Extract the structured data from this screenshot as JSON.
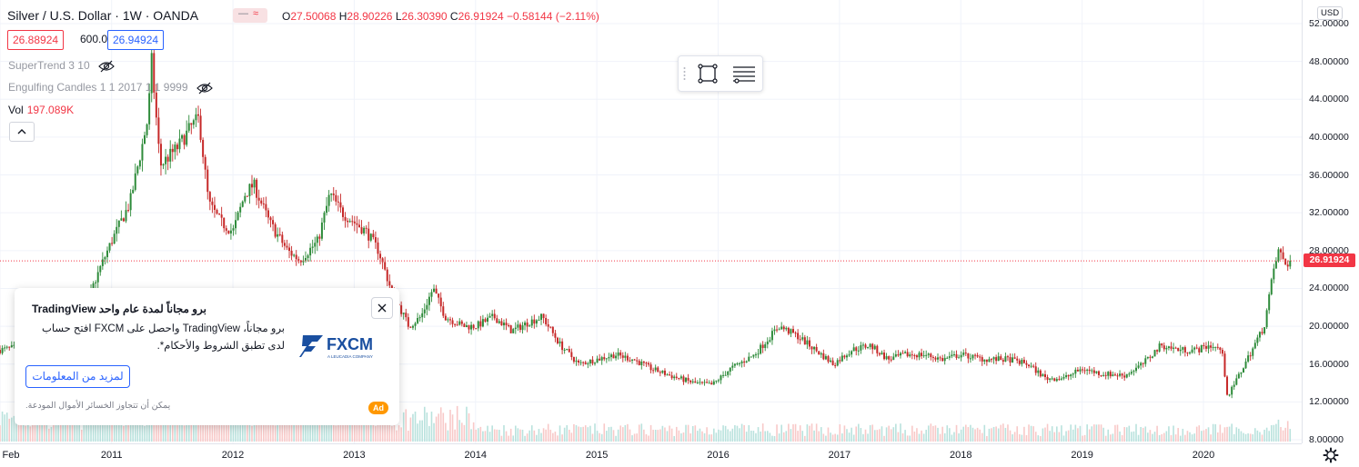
{
  "legend": {
    "symbol": "Silver / U.S. Dollar",
    "interval": "1W",
    "exchange": "OANDA",
    "toggle_icon_left": "—",
    "toggle_icon_right": "≈",
    "open_label": "O",
    "open": "27.50068",
    "high_label": "H",
    "high": "28.90226",
    "low_label": "L",
    "low": "26.30390",
    "close_label": "C",
    "close": "26.91924",
    "change": "−0.58144",
    "change_pct": "(−2.11%)",
    "bid": "26.88924",
    "spread": "600.0",
    "ask": "26.94924",
    "indicator1": "SuperTrend 3 10",
    "indicator2": "Engulfing Candles 1 1 2017 1 1 9999",
    "volume_label": "Vol",
    "volume_value": "197.089K",
    "hidden_icon": "eye-crossed-icon",
    "collapse_icon": "chevron-up-icon"
  },
  "price_axis": {
    "currency": "USD",
    "ticks": [
      "52.00000",
      "48.00000",
      "44.00000",
      "40.00000",
      "36.00000",
      "32.00000",
      "28.00000",
      "24.00000",
      "20.00000",
      "16.00000",
      "12.00000",
      "8.00000"
    ],
    "last_price": "26.91924"
  },
  "time_axis": {
    "labels": [
      "Feb",
      "2011",
      "2012",
      "2013",
      "2014",
      "2015",
      "2016",
      "2017",
      "2018",
      "2019",
      "2020"
    ]
  },
  "toolbar": {
    "rect_icon": "rectangle-tool-icon",
    "lines_icon": "settings-lines-icon"
  },
  "ad": {
    "title": "برو مجاناً لمدة عام واحد TradingView",
    "body": "برو مجاناً، TradingView واحصل على FXCM افتح حساب لدى تطبق الشروط والأحكام*.",
    "button": "لمزيد من المعلومات",
    "disclaimer": "يمكن أن تتجاوز الخسائر الأموال المودعة.",
    "badge": "Ad",
    "logo_text": "FXCM",
    "logo_sub": "A LEUCADIA COMPANY",
    "brand_color": "#1a4fa0"
  },
  "colors": {
    "up": "#26a69a",
    "down": "#ef5350",
    "up_candle": "#2e8b3a",
    "down_candle": "#c62828",
    "last_price": "#f23645",
    "accent": "#2962ff"
  },
  "chart_data": {
    "type": "candlestick",
    "y_range": [
      8,
      52
    ],
    "x_range": [
      2010.08,
      2020.75
    ],
    "trend_points": [
      [
        2010.08,
        17.5
      ],
      [
        2010.5,
        18.3
      ],
      [
        2010.75,
        21
      ],
      [
        2010.9,
        26
      ],
      [
        2011.0,
        29
      ],
      [
        2011.15,
        33
      ],
      [
        2011.3,
        42
      ],
      [
        2011.33,
        48
      ],
      [
        2011.4,
        37
      ],
      [
        2011.55,
        39
      ],
      [
        2011.65,
        41
      ],
      [
        2011.72,
        42
      ],
      [
        2011.8,
        33
      ],
      [
        2011.9,
        31
      ],
      [
        2012.0,
        30
      ],
      [
        2012.1,
        34
      ],
      [
        2012.17,
        35
      ],
      [
        2012.3,
        31
      ],
      [
        2012.45,
        28
      ],
      [
        2012.55,
        27
      ],
      [
        2012.7,
        29
      ],
      [
        2012.8,
        34
      ],
      [
        2012.9,
        32
      ],
      [
        2013.0,
        31
      ],
      [
        2013.1,
        30
      ],
      [
        2013.2,
        28
      ],
      [
        2013.3,
        24
      ],
      [
        2013.45,
        20
      ],
      [
        2013.55,
        21
      ],
      [
        2013.65,
        24
      ],
      [
        2013.75,
        21
      ],
      [
        2013.9,
        20
      ],
      [
        2014.0,
        20
      ],
      [
        2014.15,
        21
      ],
      [
        2014.3,
        19.5
      ],
      [
        2014.45,
        20.5
      ],
      [
        2014.55,
        21
      ],
      [
        2014.7,
        18
      ],
      [
        2014.85,
        16
      ],
      [
        2015.0,
        16.5
      ],
      [
        2015.15,
        17
      ],
      [
        2015.3,
        16.5
      ],
      [
        2015.45,
        15.5
      ],
      [
        2015.6,
        14.8
      ],
      [
        2015.8,
        14
      ],
      [
        2015.95,
        13.8
      ],
      [
        2016.1,
        15.5
      ],
      [
        2016.3,
        17
      ],
      [
        2016.5,
        20
      ],
      [
        2016.65,
        19
      ],
      [
        2016.8,
        17.5
      ],
      [
        2016.95,
        16
      ],
      [
        2017.1,
        17.5
      ],
      [
        2017.25,
        18
      ],
      [
        2017.4,
        16.5
      ],
      [
        2017.55,
        17
      ],
      [
        2017.7,
        17
      ],
      [
        2017.85,
        16.5
      ],
      [
        2018.0,
        17
      ],
      [
        2018.2,
        16.5
      ],
      [
        2018.4,
        16.5
      ],
      [
        2018.55,
        16
      ],
      [
        2018.7,
        14.5
      ],
      [
        2018.85,
        14.5
      ],
      [
        2019.0,
        15.5
      ],
      [
        2019.15,
        15
      ],
      [
        2019.35,
        14.8
      ],
      [
        2019.5,
        16
      ],
      [
        2019.65,
        18
      ],
      [
        2019.8,
        17.5
      ],
      [
        2019.95,
        17.5
      ],
      [
        2020.05,
        18
      ],
      [
        2020.15,
        17.5
      ],
      [
        2020.2,
        12.5
      ],
      [
        2020.3,
        15
      ],
      [
        2020.4,
        17.5
      ],
      [
        2020.5,
        20
      ],
      [
        2020.58,
        26
      ],
      [
        2020.62,
        28
      ],
      [
        2020.68,
        26.5
      ],
      [
        2020.72,
        26.9
      ]
    ],
    "last_close": 26.91924
  }
}
